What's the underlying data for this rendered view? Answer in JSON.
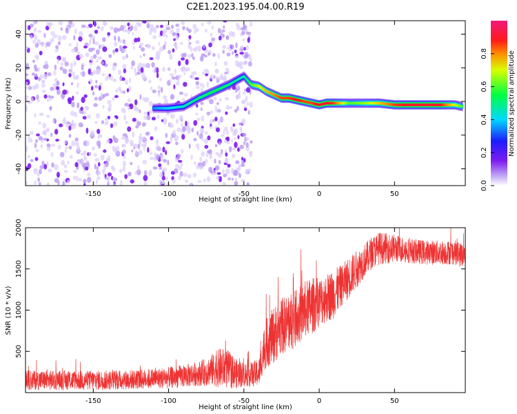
{
  "figure": {
    "title": "C2E1.2023.195.04.00.R19"
  },
  "chart_data": [
    {
      "type": "heatmap",
      "title": "C2E1.2023.195.04.00.R19",
      "xlabel": "Height of straight line (km)",
      "ylabel": "Frequency (Hz)",
      "xlim": [
        -195,
        97
      ],
      "ylim": [
        -50,
        48
      ],
      "x_ticks": [
        -150,
        -100,
        -50,
        0,
        50
      ],
      "y_ticks": [
        -40,
        -20,
        0,
        20,
        40
      ],
      "colorbar": {
        "label": "Normalized spectral amplitude",
        "range": [
          0,
          1
        ],
        "ticks": [
          0.0,
          0.2,
          0.4,
          0.6,
          0.8
        ],
        "colormap": "rainbow-like (white, violet, blue, cyan, green, yellow, red, magenta)"
      },
      "signal_trace": {
        "x": [
          -110,
          -100,
          -90,
          -80,
          -70,
          -60,
          -50,
          -45,
          -40,
          -35,
          -30,
          -25,
          -20,
          -15,
          -10,
          -5,
          0,
          5,
          10,
          20,
          30,
          40,
          50,
          60,
          70,
          80,
          90,
          95
        ],
        "y": [
          -4,
          -4,
          -3,
          2,
          6,
          10,
          15,
          10,
          9,
          6,
          4,
          2,
          2,
          1,
          0,
          -1,
          -2,
          -1,
          -1,
          -1,
          -1,
          -1,
          -2,
          -2,
          -2,
          -2,
          -2,
          -3
        ],
        "peak_amplitude": [
          0.35,
          0.4,
          0.45,
          0.5,
          0.55,
          0.5,
          0.45,
          0.6,
          0.7,
          0.75,
          0.8,
          0.85,
          0.85,
          0.9,
          0.85,
          0.85,
          0.9,
          0.9,
          0.85,
          0.6,
          0.65,
          0.75,
          0.85,
          0.9,
          0.9,
          0.9,
          0.7,
          0.6
        ]
      },
      "noise_region_x": [
        -195,
        -45
      ]
    },
    {
      "type": "line",
      "xlabel": "Height of straight line (km)",
      "ylabel": "SNR (10 * v/v)",
      "xlim": [
        -195,
        97
      ],
      "ylim": [
        0,
        2000
      ],
      "x_ticks": [
        -150,
        -100,
        -50,
        0,
        50
      ],
      "y_ticks": [
        500,
        1000,
        1500,
        2000
      ],
      "line_color": "#ee3333",
      "series": [
        {
          "x": [
            -195,
            -180,
            -160,
            -140,
            -120,
            -100,
            -90,
            -80,
            -75,
            -70,
            -65,
            -60,
            -55,
            -50,
            -45,
            -40,
            -37,
            -35,
            -30,
            -25,
            -20,
            -15,
            -10,
            -5,
            0,
            5,
            10,
            15,
            20,
            25,
            30,
            35,
            40,
            50,
            60,
            70,
            80,
            90,
            97
          ],
          "y": [
            150,
            150,
            150,
            150,
            160,
            180,
            200,
            230,
            250,
            280,
            300,
            280,
            230,
            220,
            220,
            240,
            500,
            600,
            700,
            800,
            850,
            900,
            1000,
            1050,
            1100,
            1150,
            1200,
            1300,
            1400,
            1500,
            1600,
            1700,
            1750,
            1750,
            1720,
            1700,
            1700,
            1700,
            1650
          ],
          "noise_amplitude": [
            120,
            120,
            120,
            120,
            120,
            130,
            140,
            150,
            170,
            200,
            250,
            230,
            180,
            150,
            150,
            170,
            250,
            300,
            350,
            350,
            350,
            350,
            350,
            350,
            300,
            300,
            300,
            250,
            250,
            230,
            200,
            200,
            200,
            170,
            150,
            150,
            150,
            150,
            150
          ]
        }
      ]
    }
  ]
}
